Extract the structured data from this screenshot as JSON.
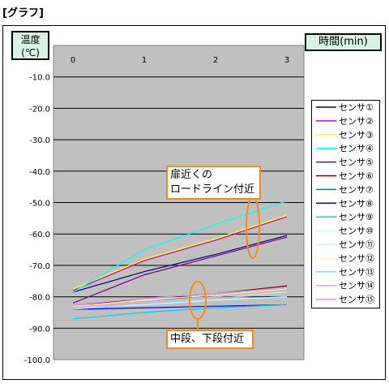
{
  "page": {
    "heading": "[グラフ]"
  },
  "chart_data": {
    "type": "line",
    "y_unit_label": [
      "温度",
      "(℃)"
    ],
    "x_unit_label": "時間(min)",
    "x": [
      0,
      1,
      2,
      3
    ],
    "x_tick_labels": [
      "0",
      "1",
      "2",
      "3"
    ],
    "ylim": [
      -100,
      0
    ],
    "y_tick_labels": [
      "-10.0",
      "-20.0",
      "-30.0",
      "-40.0",
      "-50.0",
      "-60.0",
      "-70.0",
      "-80.0",
      "-90.0",
      "-100.0"
    ],
    "y_tick_values": [
      -10,
      -20,
      -30,
      -40,
      -50,
      -60,
      -70,
      -80,
      -90,
      -100
    ],
    "grid": true,
    "legend_position": "right",
    "plot_background": "#c0c0c0",
    "series": [
      {
        "name": "センサ①",
        "color": "#000080",
        "values": [
          -78.5,
          -72.0,
          -66.5,
          -60.5
        ]
      },
      {
        "name": "センサ②",
        "color": "#cc00cc",
        "values": [
          -78.0,
          -68.5,
          -62.0,
          -54.5
        ]
      },
      {
        "name": "センサ③",
        "color": "#ffff00",
        "values": [
          -77.5,
          -68.0,
          -61.5,
          -54.0
        ]
      },
      {
        "name": "センサ④",
        "color": "#00ffff",
        "values": [
          -78.5,
          -65.0,
          -57.0,
          -49.5
        ]
      },
      {
        "name": "センサ⑤",
        "color": "#800080",
        "values": [
          -82.0,
          -73.0,
          -67.0,
          -61.0
        ]
      },
      {
        "name": "センサ⑥",
        "color": "#800000",
        "values": [
          -83.0,
          -80.5,
          -79.0,
          -76.5
        ]
      },
      {
        "name": "センサ⑦",
        "color": "#008080",
        "values": [
          -83.5,
          -81.5,
          -79.5,
          -77.5
        ]
      },
      {
        "name": "センサ⑧",
        "color": "#0000ff",
        "values": [
          -84.0,
          -83.5,
          -83.0,
          -82.5
        ]
      },
      {
        "name": "センサ⑨",
        "color": "#00ccff",
        "values": [
          -87.0,
          -85.0,
          -83.5,
          -82.5
        ]
      },
      {
        "name": "センサ⑩",
        "color": "#ccffff",
        "values": [
          -83.5,
          -82.5,
          -81.0,
          -80.0
        ]
      },
      {
        "name": "センサ⑪",
        "color": "#ccffcc",
        "values": [
          -83.5,
          -81.5,
          -80.0,
          -78.5
        ]
      },
      {
        "name": "センサ⑫",
        "color": "#ffff99",
        "values": [
          -83.0,
          -81.0,
          -79.5,
          -77.5
        ]
      },
      {
        "name": "センサ⑬",
        "color": "#99ccff",
        "values": [
          -84.0,
          -82.0,
          -80.5,
          -79.0
        ]
      },
      {
        "name": "センサ⑭",
        "color": "#ff99cc",
        "values": [
          -83.5,
          -81.5,
          -80.0,
          -78.0
        ]
      },
      {
        "name": "センサ⑮",
        "color": "#cc99ff",
        "values": [
          -82.5,
          -80.5,
          -79.0,
          -77.0
        ]
      }
    ],
    "annotations": [
      {
        "lines": [
          "扉近くの",
          "ロードライン付近"
        ],
        "color": "#f28a1c"
      },
      {
        "lines": [
          "中段、下段付近"
        ],
        "color": "#f28a1c"
      }
    ]
  }
}
